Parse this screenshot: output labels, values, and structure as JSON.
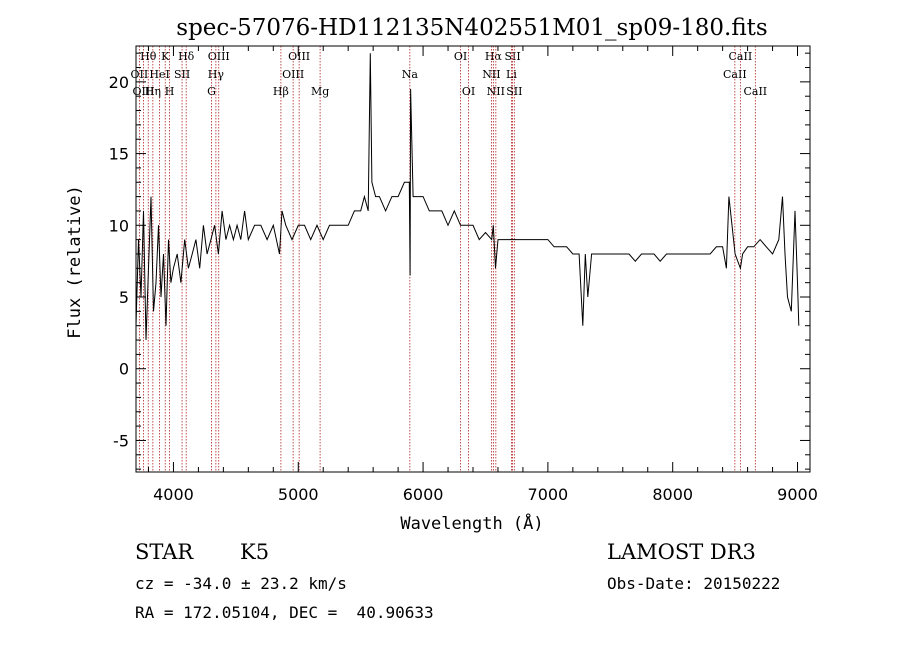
{
  "chart_data": {
    "type": "line",
    "title": "spec-57076-HD112135N402551M01_sp09-180.fits",
    "xlabel": "Wavelength (Å)",
    "ylabel": "Flux (relative)",
    "xlim": [
      3700,
      9100
    ],
    "ylim": [
      -7.2,
      22.5
    ],
    "x_ticks": [
      4000,
      5000,
      6000,
      7000,
      8000,
      9000
    ],
    "y_ticks": [
      -5,
      0,
      5,
      10,
      15,
      20
    ],
    "series": [
      {
        "name": "flux",
        "x": [
          3700,
          3720,
          3740,
          3760,
          3780,
          3800,
          3820,
          3840,
          3860,
          3880,
          3900,
          3920,
          3940,
          3960,
          3980,
          4000,
          4030,
          4060,
          4090,
          4120,
          4150,
          4180,
          4210,
          4240,
          4270,
          4300,
          4330,
          4360,
          4390,
          4420,
          4450,
          4480,
          4510,
          4540,
          4570,
          4600,
          4650,
          4700,
          4750,
          4800,
          4850,
          4870,
          4900,
          4950,
          5000,
          5050,
          5100,
          5150,
          5200,
          5250,
          5300,
          5350,
          5400,
          5450,
          5500,
          5530,
          5560,
          5577,
          5590,
          5620,
          5650,
          5700,
          5750,
          5800,
          5850,
          5890,
          5896,
          5900,
          5920,
          5950,
          6000,
          6050,
          6100,
          6150,
          6200,
          6250,
          6300,
          6350,
          6400,
          6450,
          6500,
          6550,
          6563,
          6580,
          6600,
          6650,
          6700,
          6750,
          6800,
          6850,
          6900,
          6950,
          7000,
          7050,
          7100,
          7150,
          7200,
          7250,
          7280,
          7300,
          7320,
          7350,
          7400,
          7450,
          7500,
          7550,
          7600,
          7650,
          7700,
          7750,
          7800,
          7850,
          7900,
          7950,
          8000,
          8050,
          8100,
          8150,
          8200,
          8250,
          8300,
          8350,
          8400,
          8430,
          8450,
          8500,
          8542,
          8560,
          8600,
          8650,
          8700,
          8750,
          8800,
          8850,
          8880,
          8900,
          8920,
          8950,
          8980,
          9000,
          9010
        ],
        "y": [
          3,
          9,
          5,
          11,
          2,
          7,
          12,
          4,
          6,
          10,
          5,
          8,
          3,
          9,
          6,
          7,
          8,
          6,
          9,
          7,
          8,
          9,
          7,
          10,
          8,
          9,
          10,
          8,
          11,
          9,
          10,
          9,
          10,
          9,
          11,
          9,
          10,
          10,
          9,
          10,
          8,
          11,
          10,
          9,
          10,
          10,
          9,
          10,
          9,
          10,
          10,
          10,
          10,
          11,
          11,
          12,
          11,
          22,
          13,
          12,
          12,
          11,
          12,
          12,
          13,
          13,
          6.5,
          19.5,
          12,
          12,
          12,
          11,
          11,
          11,
          10,
          11,
          10,
          10,
          10,
          9,
          9.5,
          9,
          10,
          7,
          9,
          9,
          9,
          9,
          9,
          9,
          9,
          9,
          9,
          8.5,
          8.5,
          8.5,
          8,
          8,
          3,
          8,
          5,
          8,
          8,
          8,
          8,
          8,
          8,
          8,
          7.5,
          8,
          8,
          8,
          7.5,
          8,
          8,
          8,
          8,
          8,
          8,
          8,
          8,
          8.5,
          8.5,
          7,
          12,
          8,
          7,
          8,
          8.5,
          8.5,
          9,
          8.5,
          8,
          9,
          12,
          8,
          5,
          4,
          11,
          6,
          3
        ]
      }
    ],
    "line_markers": [
      {
        "label": "Hθ",
        "x": 3798,
        "row": 0
      },
      {
        "label": "OII",
        "x": 3727,
        "row": 1
      },
      {
        "label": "HeI",
        "x": 3889,
        "row": 1
      },
      {
        "label": "OIII",
        "x": 3760,
        "row": 2
      },
      {
        "label": "Hη",
        "x": 3835,
        "row": 2
      },
      {
        "label": "K",
        "x": 3934,
        "row": 0
      },
      {
        "label": "H",
        "x": 3969,
        "row": 2
      },
      {
        "label": "SII",
        "x": 4069,
        "row": 1
      },
      {
        "label": "Hδ",
        "x": 4102,
        "row": 0
      },
      {
        "label": "OIII",
        "x": 4363,
        "row": 0
      },
      {
        "label": "Hγ",
        "x": 4340,
        "row": 1
      },
      {
        "label": "G",
        "x": 4305,
        "row": 2
      },
      {
        "label": "Hβ",
        "x": 4861,
        "row": 2
      },
      {
        "label": "OIII",
        "x": 5007,
        "row": 0
      },
      {
        "label": "OIII",
        "x": 4959,
        "row": 1
      },
      {
        "label": "Mg",
        "x": 5175,
        "row": 2
      },
      {
        "label": "Na",
        "x": 5894,
        "row": 1
      },
      {
        "label": "OI",
        "x": 6300,
        "row": 0
      },
      {
        "label": "OI",
        "x": 6364,
        "row": 2
      },
      {
        "label": "Hα",
        "x": 6563,
        "row": 0
      },
      {
        "label": "NII",
        "x": 6548,
        "row": 1
      },
      {
        "label": "NII",
        "x": 6583,
        "row": 2
      },
      {
        "label": "SII",
        "x": 6717,
        "row": 0
      },
      {
        "label": "Li",
        "x": 6708,
        "row": 1
      },
      {
        "label": "SII",
        "x": 6731,
        "row": 2
      },
      {
        "label": "CaII",
        "x": 8542,
        "row": 0
      },
      {
        "label": "CaII",
        "x": 8498,
        "row": 1
      },
      {
        "label": "CaII",
        "x": 8662,
        "row": 2
      }
    ],
    "marker_color": "#b22222"
  },
  "info": {
    "object_class": "STAR",
    "subclass": "K5",
    "survey": "LAMOST DR3",
    "redshift": "cz = -34.0 ± 23.2 km/s",
    "obs_date": "Obs-Date: 20150222",
    "coords": "RA = 172.05104, DEC =  40.90633"
  }
}
